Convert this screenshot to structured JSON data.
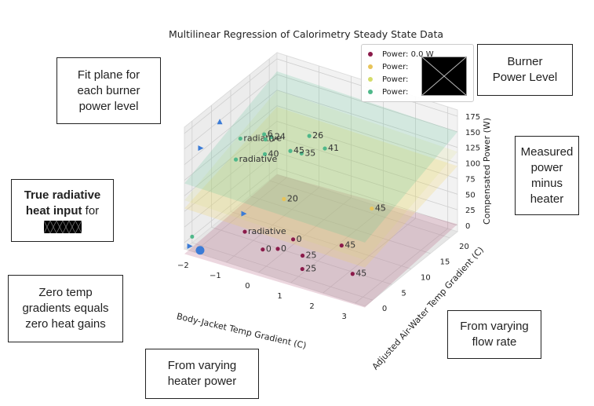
{
  "chart_data": {
    "type": "scatter",
    "projection": "3d",
    "title": "Multilinear Regression of Calorimetry Steady State Data",
    "xlabel": "Body-Jacket Temp Gradient (C)",
    "ylabel": "Adjusted Air-Water Temp Gradient (C)",
    "zlabel": "Compensated Power (W)",
    "xticks": [
      "−2",
      "−1",
      "0",
      "1",
      "2",
      "3"
    ],
    "yticks": [
      "0",
      "5",
      "10",
      "15",
      "20"
    ],
    "zticks": [
      "0",
      "25",
      "50",
      "75",
      "100",
      "125",
      "150",
      "175"
    ],
    "xlim": [
      -2.3,
      3.3
    ],
    "ylim": [
      -2,
      22
    ],
    "zlim": [
      -10,
      185
    ],
    "grid": true,
    "legend_position": "top-right",
    "series": [
      {
        "name": "Power: 0.0 W",
        "color": "#8b1a4a",
        "points": [
          {
            "x": -0.3,
            "y": 1.6,
            "z": 4,
            "label": "0"
          },
          {
            "x": 0.2,
            "y": 5.3,
            "z": 10,
            "label": "0"
          },
          {
            "x": 0.0,
            "y": 3.0,
            "z": 3,
            "label": "0"
          },
          {
            "x": -1.0,
            "y": 2.8,
            "z": 15,
            "label": "radiative"
          },
          {
            "x": 0.6,
            "y": 4.4,
            "z": -5,
            "label": "25"
          },
          {
            "x": 1.5,
            "y": 7.0,
            "z": 13,
            "label": "45"
          },
          {
            "x": 1.0,
            "y": 1.0,
            "z": -3,
            "label": "25"
          },
          {
            "x": 2.2,
            "y": 4.0,
            "z": -6,
            "label": "45"
          }
        ]
      },
      {
        "name": "Power: ",
        "color": "#e8c45a",
        "points": [
          {
            "x": -0.6,
            "y": 9.6,
            "z": 40,
            "label": "20"
          },
          {
            "x": 1.6,
            "y": 14.0,
            "z": 39,
            "label": "45"
          }
        ]
      },
      {
        "name": "Power: ",
        "color": "#d4dc6a",
        "points": []
      },
      {
        "name": "Power: ",
        "color": "#4fb88a",
        "points": [
          {
            "x": -2.0,
            "y": 10.0,
            "z": 112,
            "label": "radiative"
          },
          {
            "x": -1.3,
            "y": 10.5,
            "z": 96,
            "label": "40"
          },
          {
            "x": -1.9,
            "y": 8.0,
            "z": 90,
            "label": "radiative"
          },
          {
            "x": -1.3,
            "y": 12.2,
            "z": 115,
            "label": "24"
          },
          {
            "x": -0.4,
            "y": 12.5,
            "z": 102,
            "label": "35"
          },
          {
            "x": -0.7,
            "y": 12.1,
            "z": 103,
            "label": "45"
          },
          {
            "x": -0.4,
            "y": 14.5,
            "z": 120,
            "label": "26"
          },
          {
            "x": 0.0,
            "y": 15.2,
            "z": 103,
            "label": "41"
          },
          {
            "x": -1.5,
            "y": 12.0,
            "z": 117,
            "label": "6"
          },
          {
            "x": -1.4,
            "y": 11.5,
            "z": 113,
            "label": "0"
          }
        ]
      }
    ],
    "extra_markers": [
      {
        "x": -2.4,
        "y": 3.0,
        "z": 125,
        "shape": "triangle-right",
        "color": "#3b7bd6"
      },
      {
        "x": -2.4,
        "y": 8.0,
        "z": 142,
        "shape": "triangle-up",
        "color": "#3b7bd6"
      },
      {
        "x": -1.3,
        "y": 5.0,
        "z": 28,
        "shape": "triangle-right",
        "color": "#3b7bd6"
      },
      {
        "x": -1.9,
        "y": -4.0,
        "z": 11,
        "shape": "triangle-right",
        "color": "#3b7bd6"
      },
      {
        "x": -1.55,
        "y": -4.2,
        "z": 11,
        "shape": "circle",
        "color": "#3b7bd6"
      },
      {
        "x": -2.0,
        "y": -2.5,
        "z": 17,
        "shape": "circle-small",
        "color": "#4fb88a"
      }
    ],
    "planes": [
      {
        "color": "#a84a6e",
        "alpha": 0.22,
        "z_at": {
          "xmin_ymin": -18,
          "xmax_ymin": -12,
          "xmin_ymax": -10,
          "xmax_ymax": 2
        }
      },
      {
        "color": "#f0d25a",
        "alpha": 0.22,
        "z_at": {
          "xmin_ymin": 55,
          "xmax_ymin": 52,
          "xmin_ymax": 98,
          "xmax_ymax": 95
        }
      },
      {
        "color": "#d6dc6c",
        "alpha": 0.15,
        "z_at": {
          "xmin_ymin": 68,
          "xmax_ymin": 64,
          "xmin_ymax": 125,
          "xmax_ymax": 118
        }
      },
      {
        "color": "#66c29a",
        "alpha": 0.22,
        "z_at": {
          "xmin_ymin": 95,
          "xmax_ymin": 92,
          "xmin_ymax": 155,
          "xmax_ymax": 150
        }
      }
    ]
  },
  "legend": {
    "items": [
      {
        "label": "Power: 0.0 W",
        "color": "#8b1a4a"
      },
      {
        "label": "Power:",
        "color": "#e8c45a"
      },
      {
        "label": "Power:",
        "color": "#d4dc6a"
      },
      {
        "label": "Power:",
        "color": "#4fb88a"
      }
    ]
  },
  "annotations": {
    "fit_plane": [
      "Fit plane for",
      "each burner",
      "power level"
    ],
    "burner": [
      "Burner",
      "Power Level"
    ],
    "measured": [
      "Measured",
      "power",
      "minus",
      "heater"
    ],
    "radiative_bold": "True radiative",
    "radiative_rest1": "heat input",
    "radiative_for": " for",
    "zero": [
      "Zero temp",
      "gradients equals",
      "zero heat gains"
    ],
    "flow": [
      "From varying",
      "flow rate"
    ],
    "heater": [
      "From varying",
      "heater power"
    ]
  }
}
